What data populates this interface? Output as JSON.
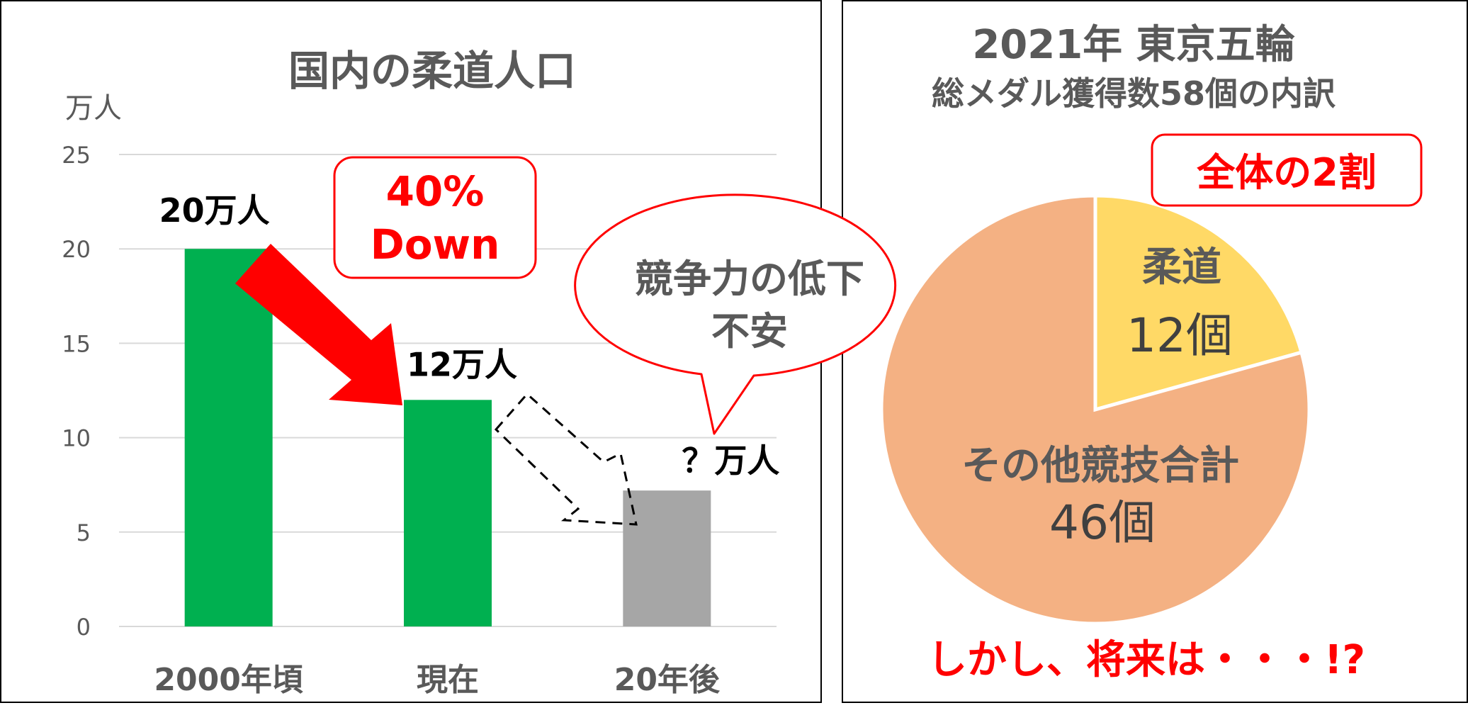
{
  "chart_data": [
    {
      "type": "bar",
      "title": "国内の柔道人口",
      "ylabel": "万人",
      "ylim": [
        0,
        25
      ],
      "yticks": [
        "0",
        "5",
        "10",
        "15",
        "20",
        "25"
      ],
      "grid": true,
      "categories": [
        "2000年頃",
        "現在",
        "20年後"
      ],
      "values": [
        20,
        12,
        7.2
      ],
      "colors": [
        "#00b050",
        "#00b050",
        "#a6a6a6"
      ],
      "data_labels": [
        "20万人",
        "12万人",
        "？万人"
      ]
    },
    {
      "type": "pie",
      "title": "2021年 東京五輪",
      "subtitle": "総メダル獲得数58個の内訳",
      "slices": [
        {
          "label": "柔道",
          "value": 12,
          "value_label": "12個",
          "color": "#ffd966"
        },
        {
          "label": "その他競技合計",
          "value": 46,
          "value_label": "46個",
          "color": "#f4b183"
        }
      ]
    }
  ],
  "annotations": {
    "decline_badge_line1": "40%",
    "decline_badge_line2": "Down",
    "speech_bubble_line1": "競争力の低下",
    "speech_bubble_line2": "不安",
    "share_badge": "全体の2割",
    "footer_note": "しかし、将来は・・・!?"
  },
  "colors": {
    "accent_red": "#ff0000",
    "text_gray": "#595959"
  }
}
